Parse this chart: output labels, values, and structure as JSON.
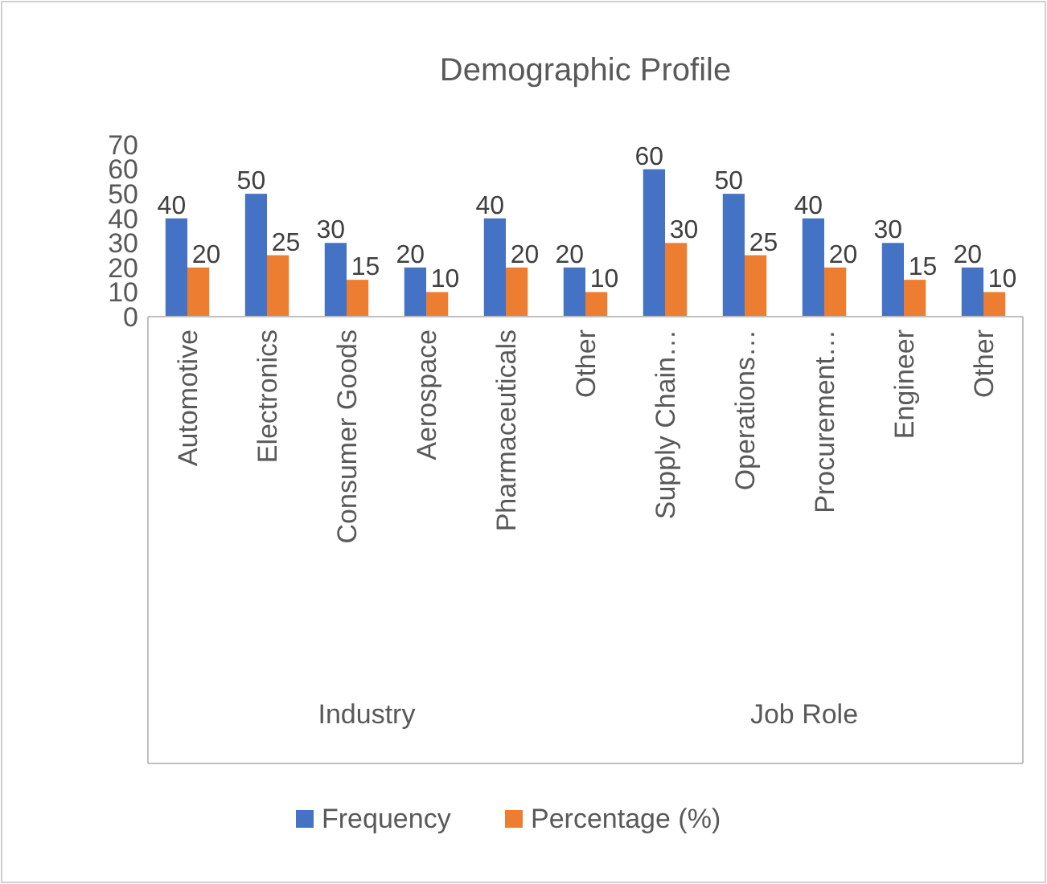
{
  "chart_data": {
    "type": "bar",
    "title": "Demographic Profile",
    "categories": [
      "Automotive",
      "Electronics",
      "Consumer Goods",
      "Aerospace",
      "Pharmaceuticals",
      "Other",
      "Supply Chain…",
      "Operations…",
      "Procurement…",
      "Engineer",
      "Other"
    ],
    "series": [
      {
        "name": "Frequency",
        "color": "#4472c4",
        "values": [
          40,
          50,
          30,
          20,
          40,
          20,
          60,
          50,
          40,
          30,
          20
        ]
      },
      {
        "name": "Percentage (%)",
        "color": "#ed7d31",
        "values": [
          20,
          25,
          15,
          10,
          20,
          10,
          30,
          25,
          20,
          15,
          10
        ]
      }
    ],
    "ylim": [
      0,
      70
    ],
    "yticks": [
      0,
      10,
      20,
      30,
      40,
      50,
      60,
      70
    ],
    "grid": false,
    "data_labels": true,
    "legend": "bottom",
    "annotations": [
      "Industry",
      "Job Role"
    ]
  }
}
